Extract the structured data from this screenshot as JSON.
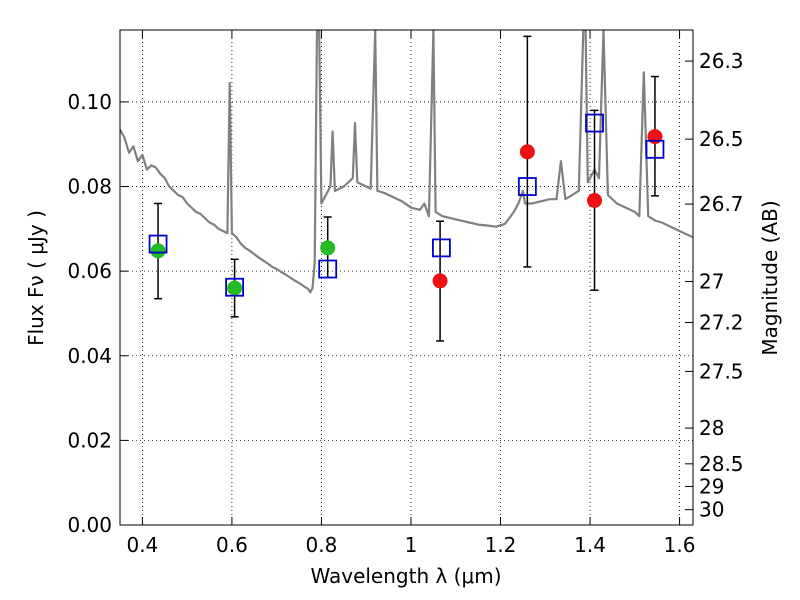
{
  "chart_data": {
    "type": "scatter",
    "xlabel": "Wavelength  λ (μm)",
    "ylabel": "Flux  Fν  ( μJy )",
    "y2label": "Magnitude (AB)",
    "xlim": [
      0.35,
      1.63
    ],
    "ylim": [
      0.0,
      0.117
    ],
    "grid": true,
    "x_ticks": [
      {
        "value": 0.4,
        "label": "0.4"
      },
      {
        "value": 0.6,
        "label": "0.6"
      },
      {
        "value": 0.8,
        "label": "0.8"
      },
      {
        "value": 1.0,
        "label": "1"
      },
      {
        "value": 1.2,
        "label": "1.2"
      },
      {
        "value": 1.4,
        "label": "1.4"
      },
      {
        "value": 1.6,
        "label": "1.6"
      }
    ],
    "y_ticks": [
      {
        "value": 0.0,
        "label": "0.00"
      },
      {
        "value": 0.02,
        "label": "0.02"
      },
      {
        "value": 0.04,
        "label": "0.04"
      },
      {
        "value": 0.06,
        "label": "0.06"
      },
      {
        "value": 0.08,
        "label": "0.08"
      },
      {
        "value": 0.1,
        "label": "0.10"
      }
    ],
    "y2_ticks": [
      {
        "mag": 26.3,
        "label": "26.3"
      },
      {
        "mag": 26.5,
        "label": "26.5"
      },
      {
        "mag": 26.7,
        "label": "26.7"
      },
      {
        "mag": 27.0,
        "label": "27"
      },
      {
        "mag": 27.2,
        "label": "27.2"
      },
      {
        "mag": 27.5,
        "label": "27.5"
      },
      {
        "mag": 28.0,
        "label": "28"
      },
      {
        "mag": 28.5,
        "label": "28.5"
      },
      {
        "mag": 29.0,
        "label": "29"
      },
      {
        "mag": 30.0,
        "label": "30"
      }
    ],
    "observed": [
      {
        "x": 0.435,
        "y": 0.0648,
        "err_lo": 0.0535,
        "err_hi": 0.076,
        "color": "#22bb22"
      },
      {
        "x": 0.606,
        "y": 0.056,
        "err_lo": 0.0492,
        "err_hi": 0.0628,
        "color": "#22bb22"
      },
      {
        "x": 0.814,
        "y": 0.0655,
        "err_lo": 0.0585,
        "err_hi": 0.0728,
        "color": "#22bb22"
      },
      {
        "x": 1.065,
        "y": 0.0577,
        "err_lo": 0.0435,
        "err_hi": 0.0718,
        "color": "#ee1111"
      },
      {
        "x": 1.26,
        "y": 0.0882,
        "err_lo": 0.061,
        "err_hi": 0.1155,
        "color": "#ee1111"
      },
      {
        "x": 1.41,
        "y": 0.0767,
        "err_lo": 0.0555,
        "err_hi": 0.098,
        "color": "#ee1111"
      },
      {
        "x": 1.545,
        "y": 0.0918,
        "err_lo": 0.0778,
        "err_hi": 0.106,
        "color": "#ee1111"
      }
    ],
    "model": [
      {
        "x": 0.435,
        "y": 0.0664
      },
      {
        "x": 0.606,
        "y": 0.0562
      },
      {
        "x": 0.814,
        "y": 0.0605
      },
      {
        "x": 1.068,
        "y": 0.0655
      },
      {
        "x": 1.26,
        "y": 0.08
      },
      {
        "x": 1.41,
        "y": 0.095
      },
      {
        "x": 1.545,
        "y": 0.0888
      }
    ],
    "spectrum": [
      [
        0.35,
        0.0935
      ],
      [
        0.36,
        0.0915
      ],
      [
        0.37,
        0.088
      ],
      [
        0.38,
        0.0895
      ],
      [
        0.39,
        0.086
      ],
      [
        0.4,
        0.0875
      ],
      [
        0.41,
        0.084
      ],
      [
        0.42,
        0.085
      ],
      [
        0.43,
        0.0845
      ],
      [
        0.44,
        0.083
      ],
      [
        0.45,
        0.082
      ],
      [
        0.46,
        0.08
      ],
      [
        0.47,
        0.079
      ],
      [
        0.48,
        0.078
      ],
      [
        0.49,
        0.0775
      ],
      [
        0.5,
        0.076
      ],
      [
        0.51,
        0.075
      ],
      [
        0.52,
        0.074
      ],
      [
        0.53,
        0.0735
      ],
      [
        0.54,
        0.0725
      ],
      [
        0.55,
        0.0715
      ],
      [
        0.56,
        0.071
      ],
      [
        0.57,
        0.07
      ],
      [
        0.58,
        0.0695
      ],
      [
        0.59,
        0.069
      ],
      [
        0.595,
        0.1045
      ],
      [
        0.6,
        0.069
      ],
      [
        0.61,
        0.068
      ],
      [
        0.62,
        0.0665
      ],
      [
        0.63,
        0.0655
      ],
      [
        0.64,
        0.0648
      ],
      [
        0.65,
        0.064
      ],
      [
        0.66,
        0.0632
      ],
      [
        0.67,
        0.0625
      ],
      [
        0.68,
        0.0618
      ],
      [
        0.69,
        0.061
      ],
      [
        0.7,
        0.0605
      ],
      [
        0.71,
        0.0598
      ],
      [
        0.72,
        0.0592
      ],
      [
        0.73,
        0.0585
      ],
      [
        0.74,
        0.0578
      ],
      [
        0.75,
        0.0572
      ],
      [
        0.76,
        0.0565
      ],
      [
        0.77,
        0.0558
      ],
      [
        0.775,
        0.055
      ],
      [
        0.78,
        0.056
      ],
      [
        0.785,
        0.062
      ],
      [
        0.79,
        0.117
      ],
      [
        0.795,
        0.117
      ],
      [
        0.8,
        0.076
      ],
      [
        0.81,
        0.078
      ],
      [
        0.82,
        0.08
      ],
      [
        0.825,
        0.093
      ],
      [
        0.83,
        0.079
      ],
      [
        0.84,
        0.0795
      ],
      [
        0.85,
        0.08
      ],
      [
        0.86,
        0.081
      ],
      [
        0.87,
        0.082
      ],
      [
        0.875,
        0.095
      ],
      [
        0.88,
        0.081
      ],
      [
        0.89,
        0.0805
      ],
      [
        0.9,
        0.08
      ],
      [
        0.91,
        0.0795
      ],
      [
        0.92,
        0.117
      ],
      [
        0.925,
        0.079
      ],
      [
        0.94,
        0.0785
      ],
      [
        0.96,
        0.0775
      ],
      [
        0.98,
        0.0765
      ],
      [
        1.0,
        0.075
      ],
      [
        1.02,
        0.0745
      ],
      [
        1.03,
        0.076
      ],
      [
        1.04,
        0.073
      ],
      [
        1.05,
        0.117
      ],
      [
        1.055,
        0.074
      ],
      [
        1.07,
        0.073
      ],
      [
        1.09,
        0.0725
      ],
      [
        1.11,
        0.072
      ],
      [
        1.13,
        0.0715
      ],
      [
        1.15,
        0.071
      ],
      [
        1.17,
        0.0708
      ],
      [
        1.19,
        0.0705
      ],
      [
        1.21,
        0.0712
      ],
      [
        1.23,
        0.074
      ],
      [
        1.24,
        0.076
      ],
      [
        1.25,
        0.079
      ],
      [
        1.255,
        0.076
      ],
      [
        1.27,
        0.076
      ],
      [
        1.29,
        0.0765
      ],
      [
        1.31,
        0.077
      ],
      [
        1.325,
        0.077
      ],
      [
        1.335,
        0.086
      ],
      [
        1.345,
        0.077
      ],
      [
        1.36,
        0.078
      ],
      [
        1.375,
        0.079
      ],
      [
        1.385,
        0.117
      ],
      [
        1.39,
        0.117
      ],
      [
        1.395,
        0.081
      ],
      [
        1.41,
        0.084
      ],
      [
        1.42,
        0.082
      ],
      [
        1.43,
        0.117
      ],
      [
        1.44,
        0.078
      ],
      [
        1.46,
        0.076
      ],
      [
        1.48,
        0.075
      ],
      [
        1.5,
        0.074
      ],
      [
        1.51,
        0.073
      ],
      [
        1.52,
        0.107
      ],
      [
        1.53,
        0.073
      ],
      [
        1.545,
        0.072
      ],
      [
        1.56,
        0.0715
      ],
      [
        1.58,
        0.0705
      ],
      [
        1.6,
        0.0695
      ],
      [
        1.62,
        0.0685
      ],
      [
        1.63,
        0.068
      ]
    ]
  }
}
